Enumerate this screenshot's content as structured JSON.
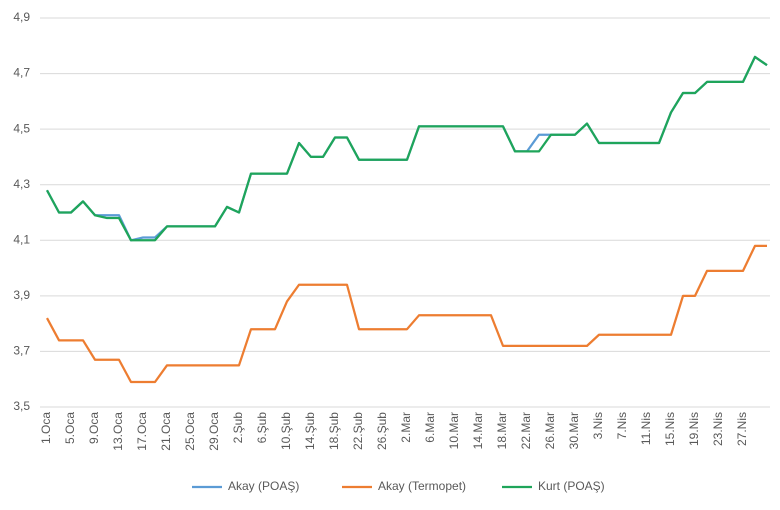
{
  "chart_data": {
    "type": "line",
    "categories": [
      "1.Oca",
      null,
      "5.Oca",
      null,
      "9.Oca",
      null,
      "13.Oca",
      null,
      "17.Oca",
      null,
      "21.Oca",
      null,
      "25.Oca",
      null,
      "29.Oca",
      null,
      "2.Şub",
      null,
      "6.Şub",
      null,
      "10.Şub",
      null,
      "14.Şub",
      null,
      "18.Şub",
      null,
      "22.Şub",
      null,
      "26.Şub",
      null,
      "2.Mar",
      null,
      "6.Mar",
      null,
      "10.Mar",
      null,
      "14.Mar",
      null,
      "18.Mar",
      null,
      "22.Mar",
      null,
      "26.Mar",
      null,
      "30.Mar",
      null,
      "3.Nis",
      null,
      "7.Nis",
      null,
      "11.Nis",
      null,
      "15.Nis",
      null,
      "19.Nis",
      null,
      "23.Nis",
      null,
      "27.Nis",
      null,
      null
    ],
    "series": [
      {
        "name": "Akay (POAŞ)",
        "color": "#5b9bd5",
        "values": [
          4.28,
          4.2,
          4.2,
          4.24,
          4.19,
          4.19,
          4.19,
          4.1,
          4.11,
          4.11,
          4.15,
          4.15,
          4.15,
          4.15,
          4.15,
          4.22,
          4.2,
          4.34,
          4.34,
          4.34,
          4.34,
          4.45,
          4.4,
          4.4,
          4.47,
          4.47,
          4.39,
          4.39,
          4.39,
          4.39,
          4.39,
          4.51,
          4.51,
          4.51,
          4.51,
          4.51,
          4.51,
          4.51,
          4.51,
          4.42,
          4.42,
          4.48,
          4.48,
          4.48,
          4.48,
          4.52,
          4.45,
          4.45,
          4.45,
          4.45,
          4.45,
          4.45,
          4.56,
          4.63,
          4.63,
          4.67,
          4.67,
          4.67,
          4.67,
          4.76,
          4.73
        ]
      },
      {
        "name": "Akay (Termopet)",
        "color": "#ed7d31",
        "values": [
          3.82,
          3.74,
          3.74,
          3.74,
          3.67,
          3.67,
          3.67,
          3.59,
          3.59,
          3.59,
          3.65,
          3.65,
          3.65,
          3.65,
          3.65,
          3.65,
          3.65,
          3.78,
          3.78,
          3.78,
          3.88,
          3.94,
          3.94,
          3.94,
          3.94,
          3.94,
          3.78,
          3.78,
          3.78,
          3.78,
          3.78,
          3.83,
          3.83,
          3.83,
          3.83,
          3.83,
          3.83,
          3.83,
          3.72,
          3.72,
          3.72,
          3.72,
          3.72,
          3.72,
          3.72,
          3.72,
          3.76,
          3.76,
          3.76,
          3.76,
          3.76,
          3.76,
          3.76,
          3.9,
          3.9,
          3.99,
          3.99,
          3.99,
          3.99,
          4.08,
          4.08
        ]
      },
      {
        "name": "Kurt (POAŞ)",
        "color": "#1fa55a",
        "values": [
          4.28,
          4.2,
          4.2,
          4.24,
          4.19,
          4.18,
          4.18,
          4.1,
          4.1,
          4.1,
          4.15,
          4.15,
          4.15,
          4.15,
          4.15,
          4.22,
          4.2,
          4.34,
          4.34,
          4.34,
          4.34,
          4.45,
          4.4,
          4.4,
          4.47,
          4.47,
          4.39,
          4.39,
          4.39,
          4.39,
          4.39,
          4.51,
          4.51,
          4.51,
          4.51,
          4.51,
          4.51,
          4.51,
          4.51,
          4.42,
          4.42,
          4.42,
          4.48,
          4.48,
          4.48,
          4.52,
          4.45,
          4.45,
          4.45,
          4.45,
          4.45,
          4.45,
          4.56,
          4.63,
          4.63,
          4.67,
          4.67,
          4.67,
          4.67,
          4.76,
          4.73
        ]
      }
    ],
    "ylim": [
      3.5,
      4.9
    ],
    "yticks": [
      {
        "value": 3.5,
        "label": "3,5"
      },
      {
        "value": 3.7,
        "label": "3,7"
      },
      {
        "value": 3.9,
        "label": "3,9"
      },
      {
        "value": 4.1,
        "label": "4,1"
      },
      {
        "value": 4.3,
        "label": "4,3"
      },
      {
        "value": 4.5,
        "label": "4,5"
      },
      {
        "value": 4.7,
        "label": "4,7"
      },
      {
        "value": 4.9,
        "label": "4,9"
      }
    ],
    "grid": true,
    "legend": "bottom"
  }
}
